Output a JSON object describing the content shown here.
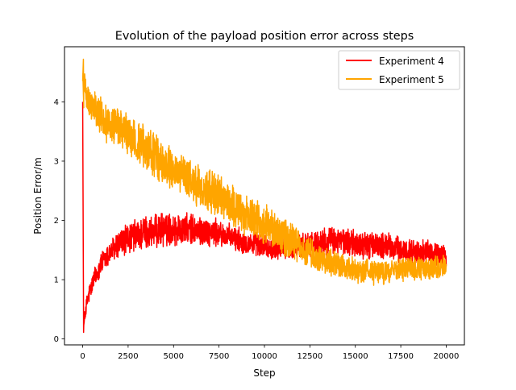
{
  "chart_data": {
    "type": "line",
    "title": "Evolution of the payload position error across steps",
    "xlabel": "Step",
    "ylabel": "Position Error/m",
    "xlim": [
      -1000,
      21000
    ],
    "ylim": [
      -0.1,
      4.93
    ],
    "x_ticks": [
      0,
      2500,
      5000,
      7500,
      10000,
      12500,
      15000,
      17500,
      20000
    ],
    "x_tick_labels": [
      "0",
      "2500",
      "5000",
      "7500",
      "10000",
      "12500",
      "15000",
      "17500",
      "20000"
    ],
    "y_ticks": [
      0,
      1,
      2,
      3,
      4
    ],
    "y_tick_labels": [
      "0",
      "1",
      "2",
      "3",
      "4"
    ],
    "grid": false,
    "legend_position": "top-right",
    "series": [
      {
        "name": "Experiment 4",
        "color": "#ff0000",
        "x": [
          0,
          50,
          100,
          200,
          300,
          500,
          750,
          1000,
          1500,
          2000,
          2500,
          3000,
          3500,
          4000,
          4500,
          5000,
          5500,
          6000,
          6500,
          7000,
          7500,
          8000,
          8500,
          9000,
          9500,
          10000,
          10500,
          11000,
          11500,
          12000,
          12500,
          13000,
          13500,
          14000,
          14500,
          15000,
          15500,
          16000,
          16500,
          17000,
          17500,
          18000,
          18500,
          19000,
          19500,
          20000
        ],
        "y": [
          4.0,
          0.15,
          0.35,
          0.55,
          0.7,
          0.9,
          1.1,
          1.25,
          1.45,
          1.6,
          1.7,
          1.75,
          1.8,
          1.8,
          1.85,
          1.85,
          1.85,
          1.85,
          1.82,
          1.8,
          1.78,
          1.72,
          1.68,
          1.62,
          1.6,
          1.55,
          1.52,
          1.55,
          1.52,
          1.55,
          1.6,
          1.62,
          1.65,
          1.65,
          1.65,
          1.6,
          1.58,
          1.58,
          1.58,
          1.55,
          1.5,
          1.48,
          1.45,
          1.45,
          1.42,
          1.4
        ],
        "noise": [
          0,
          0.05,
          0.1,
          0.12,
          0.14,
          0.15,
          0.16,
          0.17,
          0.18,
          0.2,
          0.22,
          0.24,
          0.25,
          0.24,
          0.24,
          0.23,
          0.22,
          0.22,
          0.21,
          0.2,
          0.2,
          0.19,
          0.18,
          0.18,
          0.17,
          0.16,
          0.16,
          0.17,
          0.18,
          0.18,
          0.19,
          0.2,
          0.2,
          0.2,
          0.2,
          0.2,
          0.2,
          0.19,
          0.19,
          0.19,
          0.19,
          0.18,
          0.18,
          0.18,
          0.18,
          0.17
        ]
      },
      {
        "name": "Experiment 5",
        "color": "#ffa500",
        "x": [
          0,
          100,
          300,
          500,
          1000,
          1500,
          2000,
          2500,
          3000,
          3500,
          4000,
          4500,
          5000,
          5500,
          6000,
          6500,
          7000,
          7500,
          8000,
          8500,
          9000,
          9500,
          10000,
          10500,
          11000,
          11500,
          12000,
          12500,
          13000,
          13500,
          14000,
          14500,
          15000,
          15500,
          16000,
          16500,
          17000,
          17500,
          18000,
          18500,
          19000,
          19500,
          20000
        ],
        "y": [
          4.35,
          4.3,
          4.05,
          3.95,
          3.75,
          3.6,
          3.55,
          3.45,
          3.3,
          3.2,
          3.1,
          2.95,
          2.85,
          2.75,
          2.65,
          2.55,
          2.5,
          2.4,
          2.3,
          2.2,
          2.1,
          2.05,
          1.95,
          1.85,
          1.75,
          1.65,
          1.55,
          1.45,
          1.35,
          1.3,
          1.25,
          1.2,
          1.15,
          1.15,
          1.1,
          1.1,
          1.15,
          1.18,
          1.2,
          1.18,
          1.2,
          1.2,
          1.2
        ],
        "noise": [
          0.2,
          0.2,
          0.22,
          0.25,
          0.28,
          0.28,
          0.28,
          0.28,
          0.3,
          0.32,
          0.32,
          0.3,
          0.3,
          0.3,
          0.3,
          0.3,
          0.3,
          0.3,
          0.3,
          0.3,
          0.3,
          0.3,
          0.3,
          0.28,
          0.27,
          0.26,
          0.24,
          0.22,
          0.2,
          0.2,
          0.18,
          0.18,
          0.18,
          0.17,
          0.17,
          0.17,
          0.17,
          0.17,
          0.17,
          0.17,
          0.17,
          0.17,
          0.17
        ]
      }
    ]
  }
}
